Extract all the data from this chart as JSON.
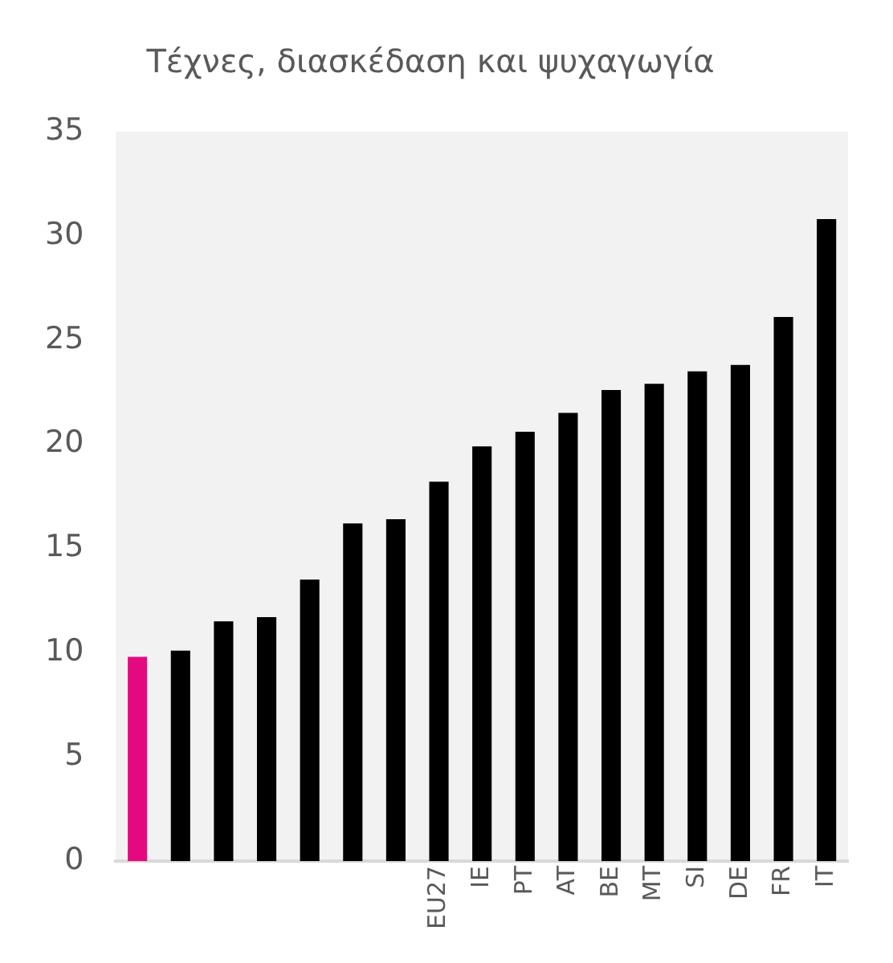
{
  "chart_data": {
    "type": "bar",
    "title": "Τέχνες, διασκέδαση και ψυχαγωγία",
    "categories": [
      null,
      null,
      null,
      null,
      null,
      null,
      null,
      "EU27",
      "IE",
      "PT",
      "AT",
      "BE",
      "MT",
      "SI",
      "DE",
      "FR",
      "IT"
    ],
    "values": [
      9.8,
      10.1,
      11.5,
      11.7,
      13.5,
      16.2,
      16.4,
      18.2,
      19.9,
      20.6,
      21.5,
      22.6,
      22.9,
      23.5,
      23.8,
      26.1,
      30.8
    ],
    "colors": [
      "#e5097f",
      "#000000",
      "#000000",
      "#000000",
      "#000000",
      "#000000",
      "#000000",
      "#000000",
      "#000000",
      "#000000",
      "#000000",
      "#000000",
      "#000000",
      "#000000",
      "#000000",
      "#000000",
      "#000000"
    ],
    "ylim": [
      0,
      35
    ],
    "yticks": [
      0,
      5,
      10,
      15,
      20,
      25,
      30,
      35
    ],
    "grid": false,
    "legend": false
  }
}
